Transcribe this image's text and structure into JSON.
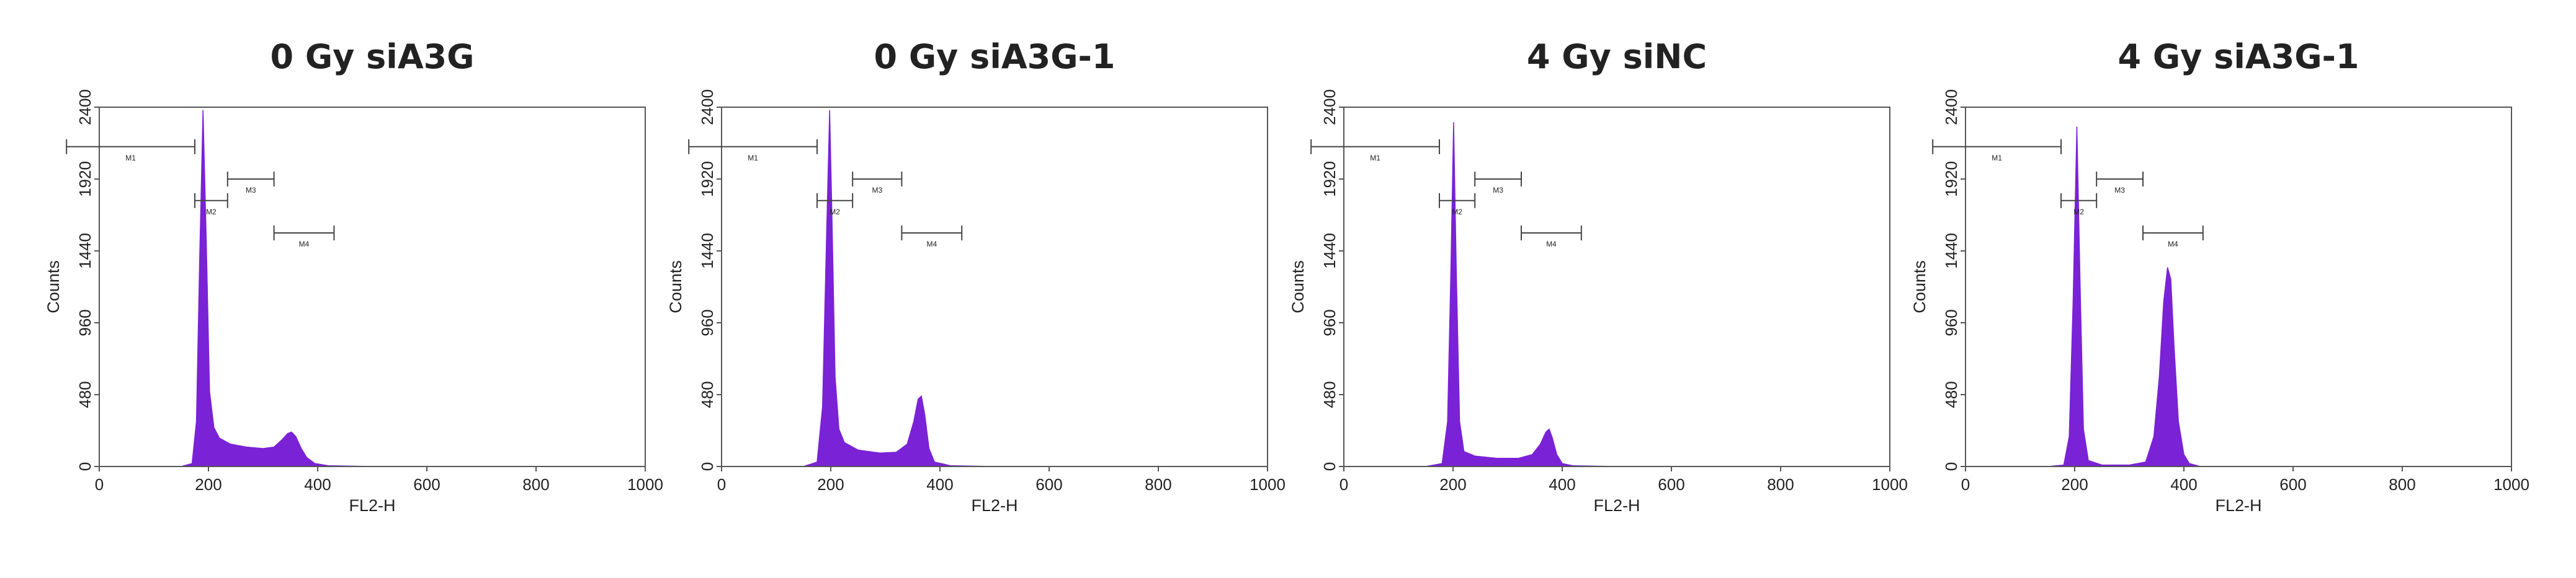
{
  "chart_data": [
    {
      "type": "area",
      "title": "0 Gy siA3G",
      "x_label": "FL2-H",
      "y_label": "Counts",
      "color": "#7a22d6",
      "xlim": [
        0,
        1000
      ],
      "ylim": [
        0,
        2400
      ],
      "xticks": [
        0,
        200,
        400,
        600,
        800,
        1000
      ],
      "yticks": [
        0,
        480,
        960,
        1440,
        1920,
        2400
      ],
      "x": [
        0,
        150,
        170,
        178,
        184,
        190,
        196,
        202,
        210,
        220,
        240,
        270,
        300,
        320,
        335,
        345,
        352,
        360,
        370,
        380,
        395,
        420,
        500,
        1000
      ],
      "values": [
        0,
        0,
        20,
        300,
        1400,
        2380,
        1500,
        500,
        260,
        190,
        150,
        130,
        120,
        130,
        180,
        220,
        230,
        200,
        120,
        60,
        20,
        5,
        0,
        0
      ],
      "gates": [
        {
          "label": "M1",
          "range": [
            -60,
            175
          ]
        },
        {
          "label": "M2",
          "range": [
            175,
            235
          ]
        },
        {
          "label": "M3",
          "range": [
            235,
            320
          ]
        },
        {
          "label": "M4",
          "range": [
            320,
            430
          ]
        }
      ]
    },
    {
      "type": "area",
      "title": "0 Gy siA3G-1",
      "x_label": "FL2-H",
      "y_label": "Counts",
      "color": "#7a22d6",
      "xlim": [
        0,
        1000
      ],
      "ylim": [
        0,
        2400
      ],
      "xticks": [
        0,
        200,
        400,
        600,
        800,
        1000
      ],
      "yticks": [
        0,
        480,
        960,
        1440,
        1920,
        2400
      ],
      "x": [
        0,
        150,
        175,
        185,
        192,
        198,
        202,
        208,
        215,
        225,
        250,
        290,
        320,
        340,
        352,
        360,
        366,
        372,
        380,
        390,
        420,
        500,
        1000
      ],
      "values": [
        0,
        0,
        30,
        400,
        1500,
        2380,
        1700,
        600,
        250,
        160,
        110,
        90,
        95,
        150,
        300,
        450,
        470,
        350,
        120,
        30,
        5,
        0,
        0
      ],
      "gates": [
        {
          "label": "M1",
          "range": [
            -60,
            175
          ]
        },
        {
          "label": "M2",
          "range": [
            175,
            240
          ]
        },
        {
          "label": "M3",
          "range": [
            240,
            330
          ]
        },
        {
          "label": "M4",
          "range": [
            330,
            440
          ]
        }
      ]
    },
    {
      "type": "area",
      "title": "4 Gy siNC",
      "x_label": "FL2-H",
      "y_label": "Counts",
      "color": "#7a22d6",
      "xlim": [
        0,
        1000
      ],
      "ylim": [
        0,
        2400
      ],
      "xticks": [
        0,
        200,
        400,
        600,
        800,
        1000
      ],
      "yticks": [
        0,
        480,
        960,
        1440,
        1920,
        2400
      ],
      "x": [
        0,
        150,
        180,
        190,
        196,
        201,
        206,
        212,
        220,
        240,
        280,
        320,
        345,
        360,
        370,
        376,
        382,
        390,
        400,
        420,
        500,
        1000
      ],
      "values": [
        0,
        0,
        20,
        300,
        1300,
        2300,
        1300,
        300,
        100,
        70,
        55,
        55,
        80,
        150,
        230,
        250,
        190,
        80,
        20,
        5,
        0,
        0
      ],
      "gates": [
        {
          "label": "M1",
          "range": [
            -60,
            175
          ]
        },
        {
          "label": "M2",
          "range": [
            175,
            240
          ]
        },
        {
          "label": "M3",
          "range": [
            240,
            325
          ]
        },
        {
          "label": "M4",
          "range": [
            325,
            435
          ]
        }
      ]
    },
    {
      "type": "area",
      "title": "4 Gy siA3G-1",
      "x_label": "FL2-H",
      "y_label": "Counts",
      "color": "#7a22d6",
      "xlim": [
        0,
        1000
      ],
      "ylim": [
        0,
        2400
      ],
      "xticks": [
        0,
        200,
        400,
        600,
        800,
        1000
      ],
      "yticks": [
        0,
        480,
        960,
        1440,
        1920,
        2400
      ],
      "x": [
        0,
        150,
        180,
        190,
        197,
        204,
        210,
        216,
        225,
        250,
        300,
        330,
        345,
        355,
        363,
        370,
        376,
        382,
        390,
        400,
        410,
        430,
        500,
        1000
      ],
      "values": [
        0,
        0,
        10,
        200,
        1100,
        2270,
        1200,
        250,
        40,
        10,
        10,
        30,
        200,
        600,
        1100,
        1330,
        1250,
        800,
        300,
        80,
        20,
        0,
        0,
        0
      ],
      "gates": [
        {
          "label": "M1",
          "range": [
            -60,
            175
          ]
        },
        {
          "label": "M2",
          "range": [
            175,
            240
          ]
        },
        {
          "label": "M3",
          "range": [
            240,
            325
          ]
        },
        {
          "label": "M4",
          "range": [
            325,
            435
          ]
        }
      ]
    }
  ]
}
